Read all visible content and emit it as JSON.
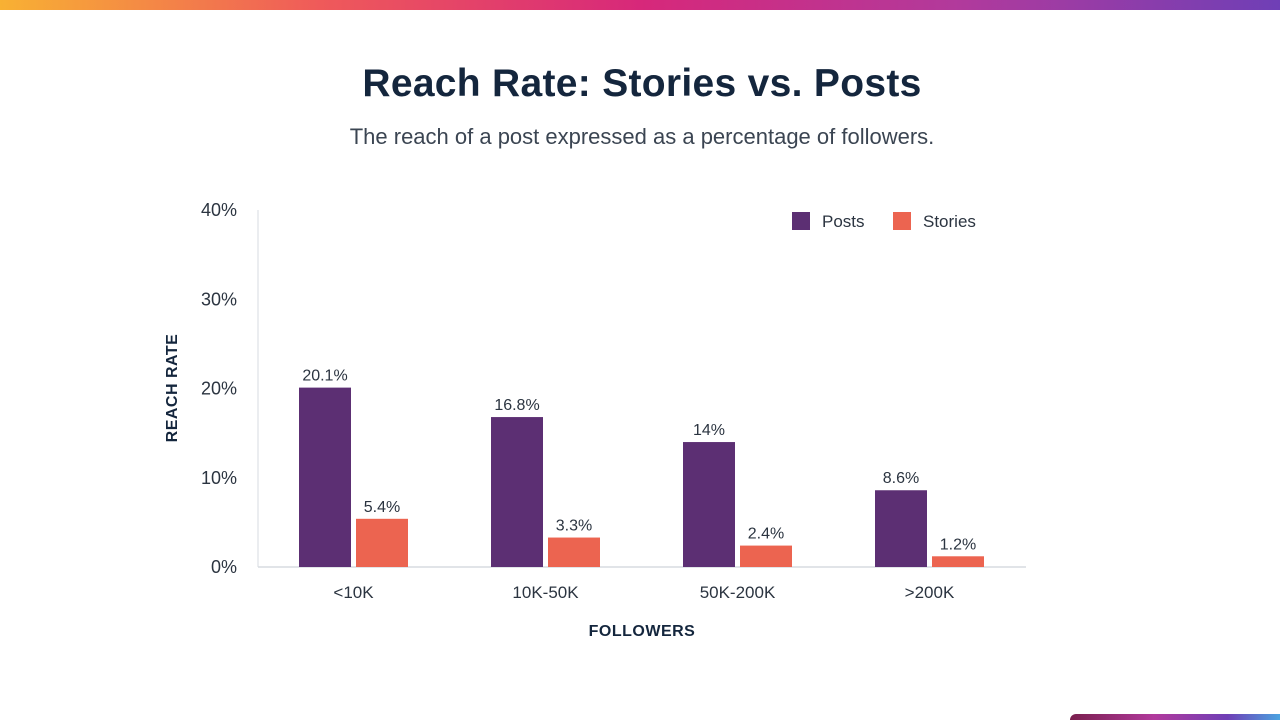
{
  "header": {
    "title": "Reach Rate: Stories vs. Posts",
    "subtitle": "The reach of a post expressed as a percentage of followers."
  },
  "colors": {
    "posts": "#5c2f73",
    "stories": "#ec6450",
    "axis": "#d7dbe0",
    "text": "#2b3440"
  },
  "chart_data": {
    "type": "bar",
    "title": "Reach Rate: Stories vs. Posts",
    "subtitle": "The reach of a post expressed as a percentage of followers.",
    "xlabel": "FOLLOWERS",
    "ylabel": "REACH RATE",
    "categories": [
      "<10K",
      "10K-50K",
      "50K-200K",
      ">200K"
    ],
    "series": [
      {
        "name": "Posts",
        "values": [
          20.1,
          16.8,
          14,
          8.6
        ],
        "labels": [
          "20.1%",
          "16.8%",
          "14%",
          "8.6%"
        ]
      },
      {
        "name": "Stories",
        "values": [
          5.4,
          3.3,
          2.4,
          1.2
        ],
        "labels": [
          "5.4%",
          "3.3%",
          "2.4%",
          "1.2%"
        ]
      }
    ],
    "ylim": [
      0,
      40
    ],
    "yticks": [
      {
        "value": 0,
        "label": "0%"
      },
      {
        "value": 10,
        "label": "10%"
      },
      {
        "value": 20,
        "label": "20%"
      },
      {
        "value": 30,
        "label": "30%"
      },
      {
        "value": 40,
        "label": "40%"
      }
    ],
    "grid": false,
    "legend_position": "top-right"
  }
}
